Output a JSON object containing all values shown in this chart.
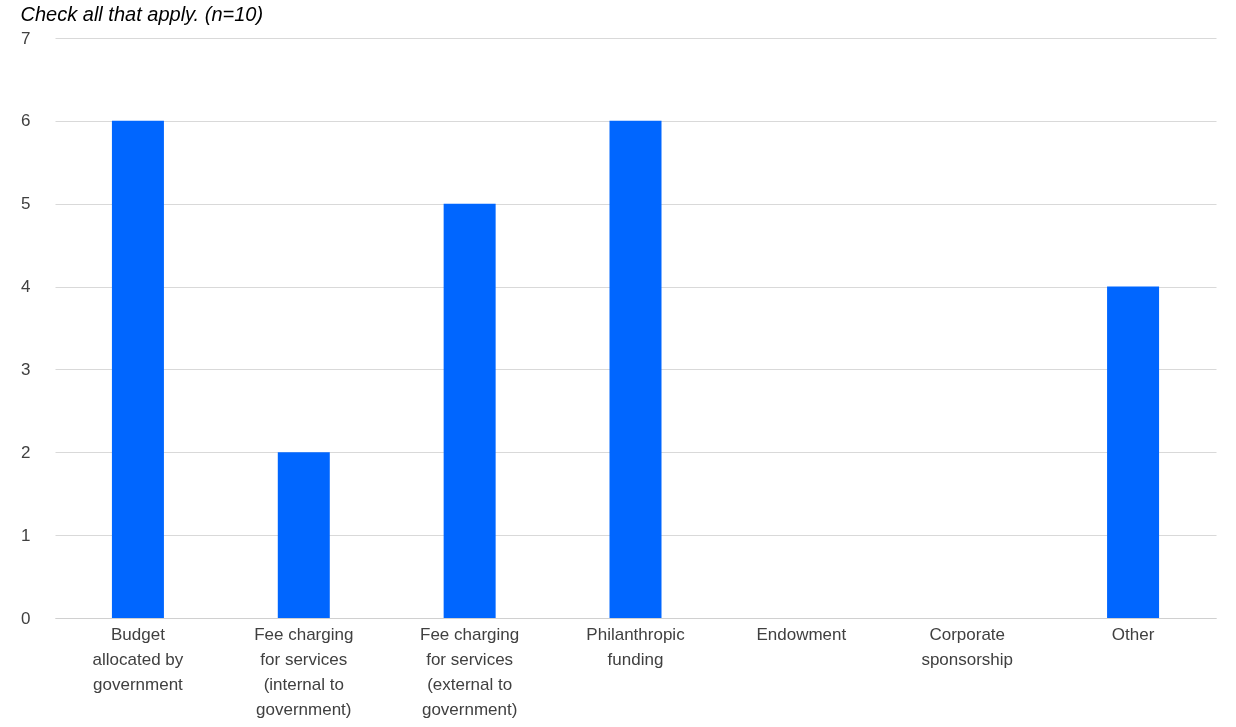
{
  "chart_data": {
    "type": "bar",
    "title": "Check all that apply. (n=10)",
    "categories": [
      "Budget allocated by government",
      "Fee charging for services (internal to government)",
      "Fee charging for services (external to government)",
      "Philanthropic funding",
      "Endowment",
      "Corporate sponsorship",
      "Other"
    ],
    "values": [
      6,
      2,
      5,
      6,
      0,
      0,
      4
    ],
    "color": "#0066ff",
    "ylim": [
      0,
      7
    ],
    "yticks": [
      0,
      1,
      2,
      3,
      4,
      5,
      6,
      7
    ],
    "grid": "y"
  }
}
